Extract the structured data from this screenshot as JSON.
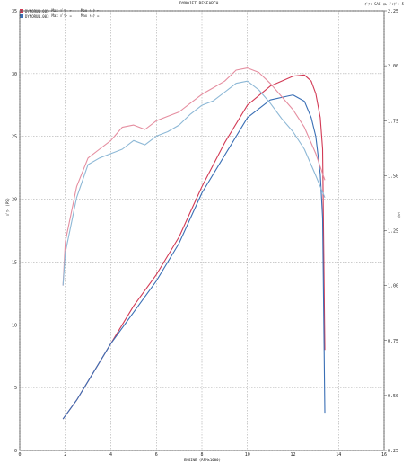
{
  "header": {
    "title": "DYNOJET RESEARCH",
    "top_right": "ｷﾞｱ: SAE ｽﾑｰｼﾞﾝｸﾞ: 5"
  },
  "legend": [
    {
      "name": "DYNORUN.005",
      "text": "Max ﾊﾟﾜｰ =",
      "max": "Max ﾄﾙｸ =",
      "color": "#d23a55"
    },
    {
      "name": "DYNORUN.003",
      "text": "Max ﾊﾟﾜｰ =",
      "max": "Max ﾄﾙｸ =",
      "color": "#3a6fb5"
    }
  ],
  "axis_labels": {
    "left": "ﾊﾟﾜｰ (PS)",
    "right": "ﾄﾙｸ",
    "bottom": "ENGINE (RPMx1000)"
  },
  "chart_data": {
    "type": "line",
    "title": "DYNOJET RESEARCH",
    "xlabel": "ENGINE (RPMx1000)",
    "ylabel": "ﾊﾟﾜｰ (PS)",
    "y2label": "ﾄﾙｸ",
    "xlim": [
      0,
      16
    ],
    "ylim": [
      0,
      35
    ],
    "y2lim": [
      0.25,
      2.25
    ],
    "x_ticks": [
      "0",
      "2",
      "4",
      "6",
      "8",
      "10",
      "12",
      "14",
      "16"
    ],
    "y_ticks": [
      "0",
      "5",
      "10",
      "15",
      "20",
      "25",
      "30",
      "35"
    ],
    "y2_ticks": [
      "0.25",
      "0.50",
      "0.75",
      "1.00",
      "1.25",
      "1.50",
      "1.75",
      "2.00",
      "2.25"
    ],
    "grid": true,
    "series": [
      {
        "name": "DYNORUN.005",
        "kind": "power",
        "axis": "left",
        "color": "#d23a55",
        "x": [
          1.9,
          2.5,
          3.0,
          4.0,
          5.0,
          6.0,
          7.0,
          7.5,
          8.0,
          9.0,
          10.0,
          11.0,
          12.0,
          12.5,
          12.8,
          13.0,
          13.2,
          13.3,
          13.4
        ],
        "y": [
          2.5,
          4.0,
          5.5,
          8.5,
          11.5,
          14.0,
          17.0,
          19.0,
          21.0,
          24.5,
          27.5,
          29.0,
          29.8,
          29.9,
          29.4,
          28.4,
          26.5,
          24.0,
          8.0
        ]
      },
      {
        "name": "DYNORUN.003",
        "kind": "power",
        "axis": "left",
        "color": "#3a6fb5",
        "x": [
          1.9,
          2.5,
          3.0,
          4.0,
          5.0,
          6.0,
          7.0,
          7.5,
          8.0,
          9.0,
          10.0,
          11.0,
          12.0,
          12.5,
          12.8,
          13.0,
          13.2,
          13.3,
          13.4
        ],
        "y": [
          2.5,
          4.0,
          5.5,
          8.5,
          11.0,
          13.5,
          16.5,
          18.5,
          20.5,
          23.5,
          26.5,
          27.9,
          28.3,
          27.8,
          26.5,
          25.0,
          22.0,
          18.5,
          3.0
        ]
      },
      {
        "name": "DYNORUN.005",
        "kind": "torque",
        "axis": "right",
        "color": "#e58ea0",
        "x": [
          1.9,
          2.0,
          2.5,
          3.0,
          3.5,
          4.0,
          4.5,
          5.0,
          5.5,
          6.0,
          6.5,
          7.0,
          7.5,
          8.0,
          8.5,
          9.0,
          9.5,
          10.0,
          10.5,
          11.0,
          11.5,
          12.0,
          12.5,
          13.0,
          13.4
        ],
        "y": [
          1.0,
          1.2,
          1.45,
          1.58,
          1.62,
          1.66,
          1.72,
          1.73,
          1.71,
          1.75,
          1.77,
          1.79,
          1.83,
          1.87,
          1.9,
          1.93,
          1.98,
          1.99,
          1.97,
          1.92,
          1.86,
          1.8,
          1.72,
          1.6,
          1.48
        ]
      },
      {
        "name": "DYNORUN.003",
        "kind": "torque",
        "axis": "right",
        "color": "#8db8d6",
        "x": [
          1.9,
          2.0,
          2.5,
          3.0,
          3.5,
          4.0,
          4.5,
          5.0,
          5.5,
          6.0,
          6.5,
          7.0,
          7.5,
          8.0,
          8.5,
          9.0,
          9.5,
          10.0,
          10.5,
          11.0,
          11.5,
          12.0,
          12.5,
          13.0,
          13.4
        ],
        "y": [
          1.0,
          1.15,
          1.4,
          1.55,
          1.58,
          1.6,
          1.62,
          1.66,
          1.64,
          1.68,
          1.7,
          1.73,
          1.78,
          1.82,
          1.84,
          1.88,
          1.92,
          1.93,
          1.89,
          1.83,
          1.76,
          1.7,
          1.62,
          1.5,
          1.4
        ]
      }
    ]
  }
}
